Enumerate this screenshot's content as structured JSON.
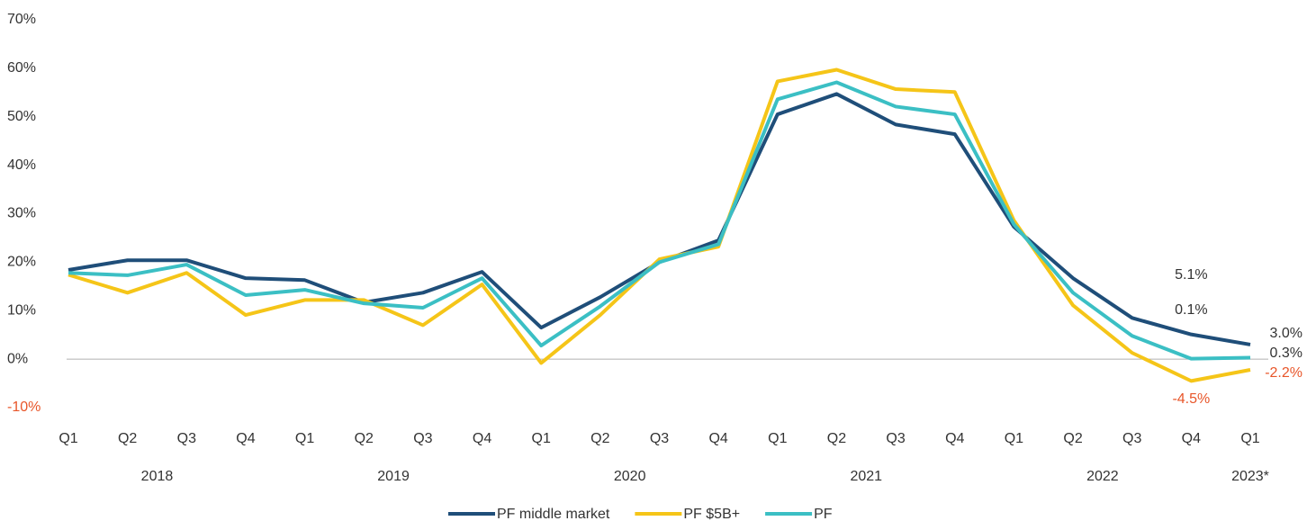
{
  "chart_data": {
    "type": "line",
    "categories": [
      "Q1",
      "Q2",
      "Q3",
      "Q4",
      "Q1",
      "Q2",
      "Q3",
      "Q4",
      "Q1",
      "Q2",
      "Q3",
      "Q4",
      "Q1",
      "Q2",
      "Q3",
      "Q4",
      "Q1",
      "Q2",
      "Q3",
      "Q4",
      "Q1"
    ],
    "years": [
      "2018",
      "2019",
      "2020",
      "2021",
      "2022",
      "2023*"
    ],
    "series": [
      {
        "name": "PF middle market",
        "color": "#1f4e79",
        "values": [
          18.4,
          20.4,
          20.4,
          16.7,
          16.3,
          11.7,
          13.7,
          18.0,
          6.5,
          12.8,
          20.0,
          24.5,
          50.5,
          54.7,
          48.4,
          46.4,
          27.3,
          16.7,
          8.5,
          5.1,
          3.0
        ]
      },
      {
        "name": "PF $5B+",
        "color": "#f5c518",
        "values": [
          17.4,
          13.7,
          17.8,
          9.1,
          12.2,
          12.2,
          7.0,
          15.4,
          -0.8,
          9.1,
          20.6,
          23.2,
          57.3,
          59.7,
          55.7,
          55.1,
          28.6,
          11.1,
          1.3,
          -4.5,
          -2.2
        ]
      },
      {
        "name": "PF",
        "color": "#3bbfc4",
        "values": [
          17.8,
          17.3,
          19.5,
          13.2,
          14.3,
          11.5,
          10.6,
          16.7,
          2.8,
          10.9,
          20.0,
          23.7,
          53.6,
          57.1,
          52.1,
          50.5,
          27.8,
          13.7,
          4.8,
          0.1,
          0.3
        ]
      }
    ],
    "annotations": [
      {
        "text": "5.1%",
        "color": "#333333"
      },
      {
        "text": "0.1%",
        "color": "#333333"
      },
      {
        "text": "-4.5%",
        "color": "#e8562a"
      },
      {
        "text": "3.0%",
        "color": "#333333"
      },
      {
        "text": "0.3%",
        "color": "#333333"
      },
      {
        "text": "-2.2%",
        "color": "#e8562a"
      }
    ],
    "ylim": [
      -10,
      70
    ],
    "yticks": [
      {
        "value": -10,
        "label": "-10%"
      },
      {
        "value": 0,
        "label": "0%"
      },
      {
        "value": 10,
        "label": "10%"
      },
      {
        "value": 20,
        "label": "20%"
      },
      {
        "value": 30,
        "label": "30%"
      },
      {
        "value": 40,
        "label": "40%"
      },
      {
        "value": 50,
        "label": "50%"
      },
      {
        "value": 60,
        "label": "60%"
      },
      {
        "value": 70,
        "label": "70%"
      }
    ],
    "negative_label_color": "#e8562a",
    "zero_line_color": "#b0b0b0",
    "legend": "bottom"
  }
}
